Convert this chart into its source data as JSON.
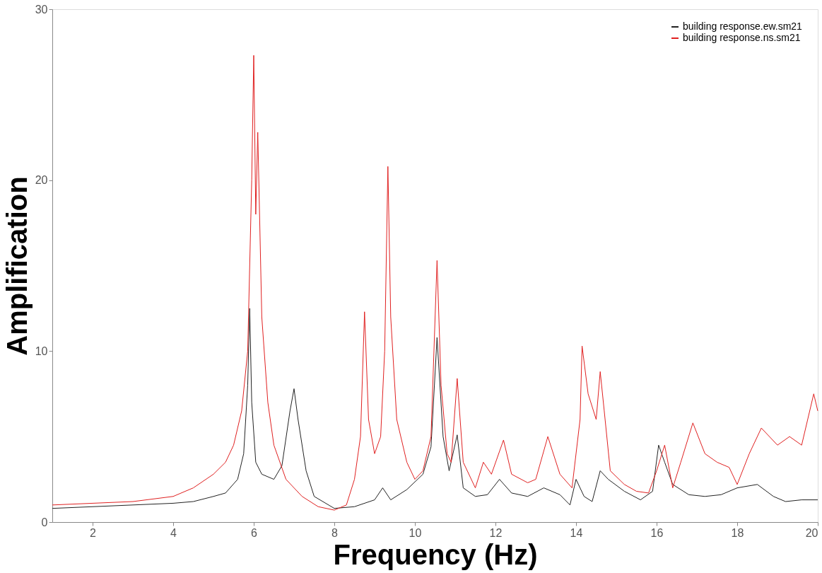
{
  "chart_data": {
    "type": "line",
    "xlabel": "Frequency (Hz)",
    "ylabel": "Amplification",
    "xlim": [
      1,
      20
    ],
    "ylim": [
      0,
      30
    ],
    "xticks": [
      2,
      4,
      6,
      8,
      10,
      12,
      14,
      16,
      18,
      20
    ],
    "yticks": [
      0,
      10,
      20,
      30
    ],
    "grid": false,
    "legend": "top right",
    "line_style": "solid",
    "marker": "none",
    "series": [
      {
        "name": "building  response.ew.sm21",
        "color": "#222222",
        "x": [
          1,
          2,
          3,
          4,
          4.5,
          5,
          5.3,
          5.6,
          5.75,
          5.85,
          5.9,
          5.95,
          6.05,
          6.2,
          6.5,
          6.7,
          6.9,
          7.0,
          7.1,
          7.3,
          7.5,
          8.0,
          8.5,
          9.0,
          9.2,
          9.4,
          9.8,
          10.2,
          10.4,
          10.55,
          10.7,
          10.85,
          11.05,
          11.2,
          11.5,
          11.8,
          12.1,
          12.4,
          12.8,
          13.2,
          13.6,
          13.85,
          14.0,
          14.2,
          14.4,
          14.6,
          14.8,
          15.2,
          15.6,
          15.9,
          16.05,
          16.2,
          16.4,
          16.8,
          17.2,
          17.6,
          18.0,
          18.5,
          18.9,
          19.2,
          19.6,
          20
        ],
        "values": [
          0.8,
          0.9,
          1.0,
          1.1,
          1.2,
          1.5,
          1.7,
          2.5,
          4,
          8,
          12.5,
          7,
          3.5,
          2.8,
          2.5,
          3.3,
          6.5,
          7.8,
          6,
          3,
          1.5,
          0.8,
          0.9,
          1.3,
          2.0,
          1.3,
          1.9,
          2.8,
          4.4,
          10.8,
          5,
          3.0,
          5.1,
          2.0,
          1.5,
          1.6,
          2.5,
          1.7,
          1.5,
          2.0,
          1.6,
          1.0,
          2.5,
          1.5,
          1.2,
          3.0,
          2.5,
          1.8,
          1.3,
          1.8,
          4.5,
          3.5,
          2.2,
          1.6,
          1.5,
          1.6,
          2.0,
          2.2,
          1.5,
          1.2,
          1.3,
          1.3
        ]
      },
      {
        "name": "building  response.ns.sm21",
        "color": "#e02020",
        "x": [
          1,
          2,
          3,
          4,
          4.5,
          5,
          5.3,
          5.5,
          5.7,
          5.85,
          5.95,
          6.0,
          6.05,
          6.1,
          6.2,
          6.35,
          6.5,
          6.8,
          7.2,
          7.6,
          8.0,
          8.3,
          8.5,
          8.65,
          8.75,
          8.85,
          9.0,
          9.15,
          9.25,
          9.33,
          9.4,
          9.55,
          9.8,
          10.0,
          10.2,
          10.4,
          10.55,
          10.65,
          10.8,
          10.9,
          11.05,
          11.2,
          11.5,
          11.7,
          11.9,
          12.2,
          12.4,
          12.8,
          13.0,
          13.3,
          13.6,
          13.9,
          14.1,
          14.15,
          14.3,
          14.5,
          14.6,
          14.7,
          14.85,
          15.2,
          15.5,
          15.8,
          16.0,
          16.2,
          16.4,
          16.6,
          16.9,
          17.2,
          17.5,
          17.8,
          18.0,
          18.3,
          18.6,
          19.0,
          19.3,
          19.6,
          19.9,
          20
        ],
        "values": [
          1.0,
          1.1,
          1.2,
          1.5,
          2.0,
          2.8,
          3.5,
          4.5,
          6.5,
          10,
          20,
          27.3,
          18,
          22.8,
          12,
          7,
          4.5,
          2.5,
          1.5,
          0.9,
          0.7,
          1.0,
          2.5,
          5,
          12.3,
          6,
          4,
          5,
          10,
          20.8,
          12,
          6,
          3.5,
          2.5,
          3.0,
          5,
          15.3,
          8,
          4,
          3.5,
          8.4,
          3.5,
          2.0,
          3.5,
          2.8,
          4.8,
          2.8,
          2.3,
          2.5,
          5.0,
          2.8,
          2.0,
          6,
          10.3,
          7.5,
          6,
          8.8,
          6.5,
          3,
          2.2,
          1.8,
          1.7,
          3.0,
          4.5,
          2.0,
          3.5,
          5.8,
          4.0,
          3.5,
          3.2,
          2.2,
          4.0,
          5.5,
          4.5,
          5.0,
          4.5,
          7.5,
          6.5
        ]
      }
    ]
  }
}
